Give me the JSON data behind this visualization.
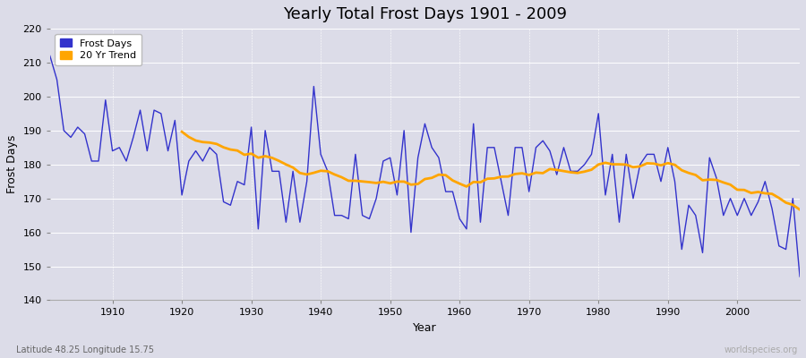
{
  "title": "Yearly Total Frost Days 1901 - 2009",
  "xlabel": "Year",
  "ylabel": "Frost Days",
  "subtitle": "Latitude 48.25 Longitude 15.75",
  "watermark": "worldspecies.org",
  "line_color": "#3333cc",
  "trend_color": "#ffa500",
  "bg_color": "#dcdce8",
  "ylim": [
    140,
    220
  ],
  "xlim": [
    1901,
    2009
  ],
  "yticks": [
    140,
    150,
    160,
    170,
    180,
    190,
    200,
    210,
    220
  ],
  "xticks": [
    1910,
    1920,
    1930,
    1940,
    1950,
    1960,
    1970,
    1980,
    1990,
    2000
  ],
  "frost_days": [
    212,
    205,
    190,
    188,
    191,
    189,
    181,
    181,
    199,
    184,
    185,
    181,
    188,
    196,
    184,
    196,
    195,
    184,
    193,
    171,
    181,
    184,
    181,
    185,
    183,
    169,
    168,
    175,
    174,
    191,
    161,
    190,
    178,
    178,
    163,
    178,
    163,
    175,
    203,
    183,
    178,
    165,
    165,
    164,
    183,
    165,
    164,
    170,
    181,
    182,
    171,
    190,
    160,
    182,
    192,
    185,
    182,
    172,
    172,
    164,
    161,
    192,
    163,
    185,
    185,
    175,
    165,
    185,
    185,
    172,
    185,
    187,
    184,
    177,
    185,
    178,
    178,
    180,
    183,
    195,
    171,
    183,
    163,
    183,
    170,
    180,
    183,
    183,
    175,
    185,
    175,
    155,
    168,
    165,
    154,
    182,
    176,
    165,
    170,
    165,
    170,
    165,
    169,
    175,
    167,
    156,
    155,
    170,
    147
  ],
  "trend_window": 20
}
